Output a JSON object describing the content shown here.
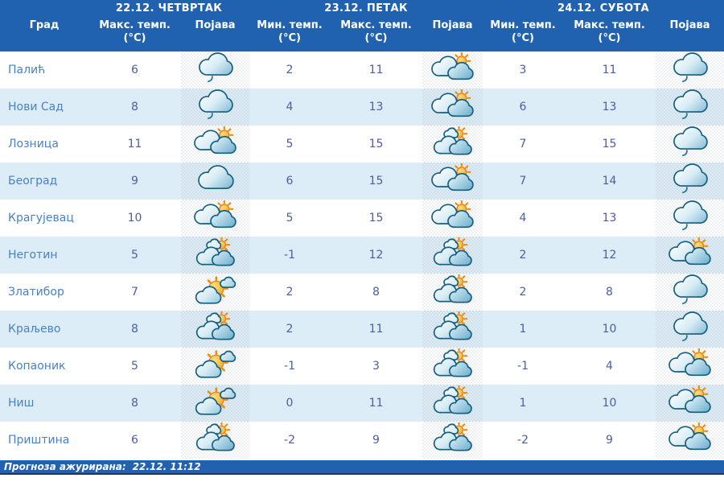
{
  "header": {
    "city_label": "Град",
    "days": [
      {
        "date": "22.12. ЧЕТВРТАК",
        "cols": [
          {
            "label": "Макс. темп.",
            "unit": "(°C)"
          },
          {
            "label": "Појава",
            "unit": ""
          }
        ]
      },
      {
        "date": "23.12. ПЕТАК",
        "cols": [
          {
            "label": "Мин. темп.",
            "unit": "(°C)"
          },
          {
            "label": "Макс. темп.",
            "unit": "(°C)"
          },
          {
            "label": "Појава",
            "unit": ""
          }
        ]
      },
      {
        "date": "24.12. СУБОТА",
        "cols": [
          {
            "label": "Мин. темп.",
            "unit": "(°C)"
          },
          {
            "label": "Макс. темп.",
            "unit": "(°C)"
          },
          {
            "label": "Појава",
            "unit": ""
          }
        ]
      }
    ]
  },
  "rows": [
    {
      "city": "Палић",
      "d1_max": "6",
      "d1_icon": "rain-cloud-icon",
      "d2_min": "2",
      "d2_max": "11",
      "d2_icon": "sun-behind-clouds-icon",
      "d3_min": "3",
      "d3_max": "11",
      "d3_icon": "rain-cloud-icon"
    },
    {
      "city": "Нови Сад",
      "d1_max": "8",
      "d1_icon": "rain-cloud-icon",
      "d2_min": "4",
      "d2_max": "13",
      "d2_icon": "sun-behind-clouds-icon",
      "d3_min": "6",
      "d3_max": "13",
      "d3_icon": "rain-cloud-icon"
    },
    {
      "city": "Лозница",
      "d1_max": "11",
      "d1_icon": "sun-behind-clouds-icon",
      "d2_min": "5",
      "d2_max": "15",
      "d2_icon": "sun-over-clouds-icon",
      "d3_min": "7",
      "d3_max": "15",
      "d3_icon": "rain-cloud-icon"
    },
    {
      "city": "Београд",
      "d1_max": "9",
      "d1_icon": "cloud-icon",
      "d2_min": "6",
      "d2_max": "15",
      "d2_icon": "sun-behind-clouds-icon",
      "d3_min": "7",
      "d3_max": "14",
      "d3_icon": "rain-cloud-icon"
    },
    {
      "city": "Крагујевац",
      "d1_max": "10",
      "d1_icon": "sun-behind-clouds-icon",
      "d2_min": "5",
      "d2_max": "15",
      "d2_icon": "sun-behind-clouds-icon",
      "d3_min": "4",
      "d3_max": "13",
      "d3_icon": "rain-cloud-icon"
    },
    {
      "city": "Неготин",
      "d1_max": "5",
      "d1_icon": "sun-over-clouds-icon",
      "d2_min": "-1",
      "d2_max": "12",
      "d2_icon": "sun-over-clouds-icon",
      "d3_min": "2",
      "d3_max": "12",
      "d3_icon": "sun-behind-clouds-icon"
    },
    {
      "city": "Златибор",
      "d1_max": "7",
      "d1_icon": "sunny-with-clouds-icon",
      "d2_min": "2",
      "d2_max": "8",
      "d2_icon": "sun-over-clouds-icon",
      "d3_min": "2",
      "d3_max": "8",
      "d3_icon": "rain-cloud-icon"
    },
    {
      "city": "Краљево",
      "d1_max": "8",
      "d1_icon": "sun-over-clouds-icon",
      "d2_min": "2",
      "d2_max": "11",
      "d2_icon": "sun-over-clouds-icon",
      "d3_min": "1",
      "d3_max": "10",
      "d3_icon": "rain-cloud-icon"
    },
    {
      "city": "Копаоник",
      "d1_max": "5",
      "d1_icon": "sunny-with-clouds-icon",
      "d2_min": "-1",
      "d2_max": "3",
      "d2_icon": "sun-over-clouds-icon",
      "d3_min": "-1",
      "d3_max": "4",
      "d3_icon": "sun-behind-clouds-icon"
    },
    {
      "city": "Ниш",
      "d1_max": "8",
      "d1_icon": "sunny-with-clouds-icon",
      "d2_min": "0",
      "d2_max": "11",
      "d2_icon": "sun-over-clouds-icon",
      "d3_min": "1",
      "d3_max": "10",
      "d3_icon": "sun-behind-clouds-icon"
    },
    {
      "city": "Приштина",
      "d1_max": "6",
      "d1_icon": "sun-over-clouds-icon",
      "d2_min": "-2",
      "d2_max": "9",
      "d2_icon": "sun-over-clouds-icon",
      "d3_min": "-2",
      "d3_max": "9",
      "d3_icon": "sun-behind-clouds-icon"
    }
  ],
  "footer": {
    "label": "Прогноза ажурирана:",
    "value": "22.12. 11:12"
  },
  "colors": {
    "header_bg": "#2162b0",
    "alt_row_bg": "#ddedf7",
    "city_text": "#4a81c3",
    "temp_text": "#4c5ea1",
    "footer_bg": "#2162b0",
    "sun": "#f5a11d",
    "cloud_outline": "#155e7e"
  }
}
